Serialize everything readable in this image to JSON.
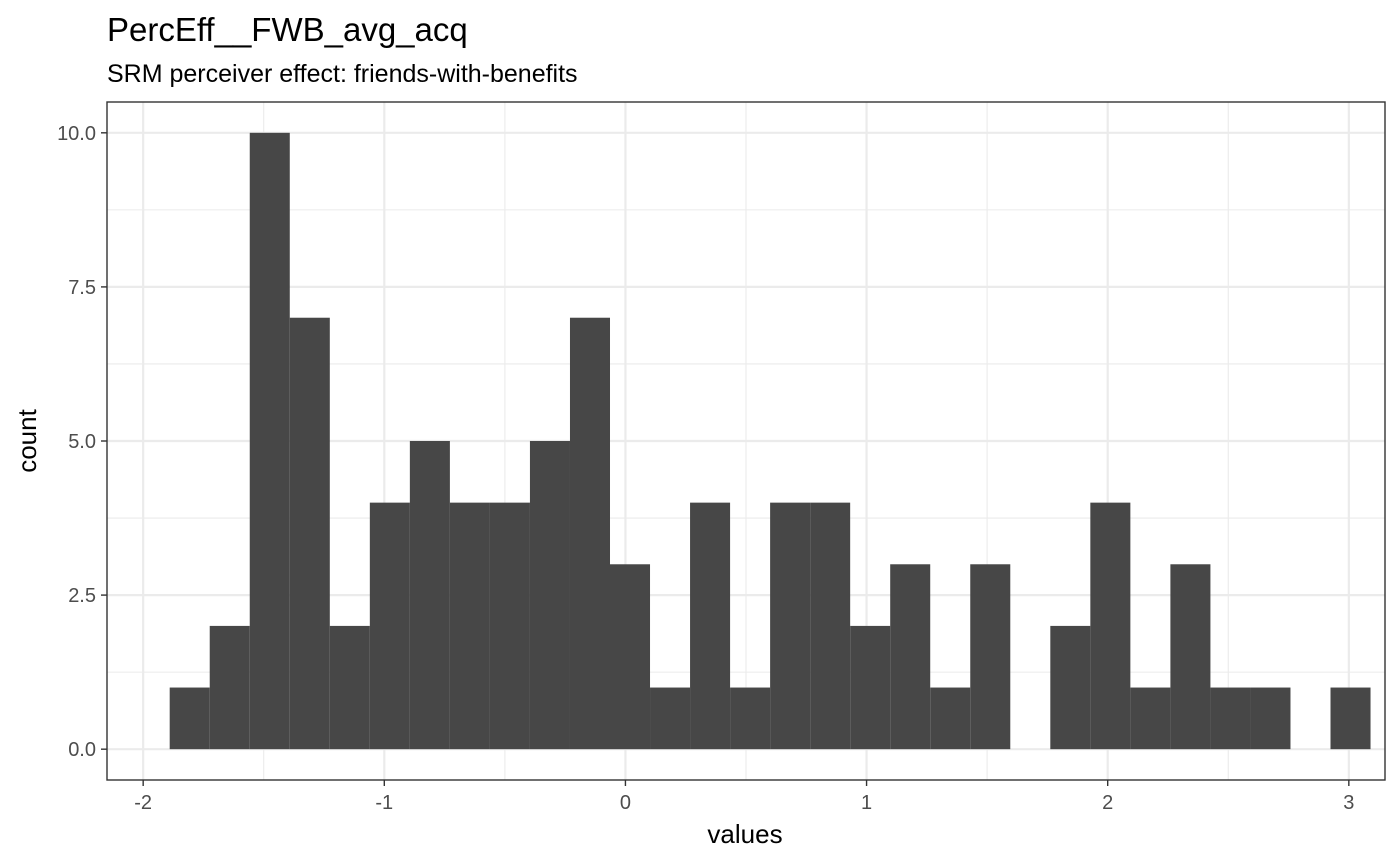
{
  "chart_data": {
    "type": "bar",
    "subtype": "histogram",
    "title": "PercEff__FWB_avg_acq",
    "subtitle": "SRM perceiver effect: friends-with-benefits",
    "xlabel": "values",
    "ylabel": "count",
    "xlim": [
      -2.15,
      3.15
    ],
    "ylim": [
      -0.5,
      10.5
    ],
    "xticks": [
      -2,
      -1,
      0,
      1,
      2,
      3
    ],
    "xtick_labels": [
      "-2",
      "-1",
      "0",
      "1",
      "2",
      "3"
    ],
    "yticks": [
      0,
      2.5,
      5,
      7.5,
      10
    ],
    "ytick_labels": [
      "0.0",
      "2.5",
      "5.0",
      "7.5",
      "10.0"
    ],
    "grid": true,
    "bar_color": "#474747",
    "bins": [
      {
        "x0": -1.89,
        "x1": -1.724,
        "count": 1
      },
      {
        "x0": -1.724,
        "x1": -1.558,
        "count": 2
      },
      {
        "x0": -1.558,
        "x1": -1.392,
        "count": 10
      },
      {
        "x0": -1.392,
        "x1": -1.226,
        "count": 7
      },
      {
        "x0": -1.226,
        "x1": -1.06,
        "count": 2
      },
      {
        "x0": -1.06,
        "x1": -0.894,
        "count": 4
      },
      {
        "x0": -0.894,
        "x1": -0.728,
        "count": 5
      },
      {
        "x0": -0.728,
        "x1": -0.562,
        "count": 4
      },
      {
        "x0": -0.562,
        "x1": -0.396,
        "count": 4
      },
      {
        "x0": -0.396,
        "x1": -0.23,
        "count": 5
      },
      {
        "x0": -0.23,
        "x1": -0.064,
        "count": 7
      },
      {
        "x0": -0.064,
        "x1": 0.102,
        "count": 3
      },
      {
        "x0": 0.102,
        "x1": 0.268,
        "count": 1
      },
      {
        "x0": 0.268,
        "x1": 0.434,
        "count": 4
      },
      {
        "x0": 0.434,
        "x1": 0.6,
        "count": 1
      },
      {
        "x0": 0.6,
        "x1": 0.766,
        "count": 4
      },
      {
        "x0": 0.766,
        "x1": 0.932,
        "count": 4
      },
      {
        "x0": 0.932,
        "x1": 1.098,
        "count": 2
      },
      {
        "x0": 1.098,
        "x1": 1.264,
        "count": 3
      },
      {
        "x0": 1.264,
        "x1": 1.43,
        "count": 1
      },
      {
        "x0": 1.43,
        "x1": 1.596,
        "count": 3
      },
      {
        "x0": 1.596,
        "x1": 1.762,
        "count": 0
      },
      {
        "x0": 1.762,
        "x1": 1.928,
        "count": 2
      },
      {
        "x0": 1.928,
        "x1": 2.094,
        "count": 4
      },
      {
        "x0": 2.094,
        "x1": 2.26,
        "count": 1
      },
      {
        "x0": 2.26,
        "x1": 2.426,
        "count": 3
      },
      {
        "x0": 2.426,
        "x1": 2.592,
        "count": 1
      },
      {
        "x0": 2.592,
        "x1": 2.758,
        "count": 1
      },
      {
        "x0": 2.758,
        "x1": 2.924,
        "count": 0
      },
      {
        "x0": 2.924,
        "x1": 3.09,
        "count": 1
      }
    ]
  }
}
